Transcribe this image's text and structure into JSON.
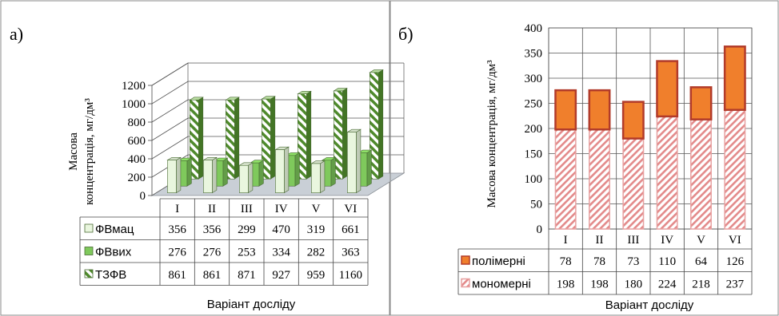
{
  "chart_data": [
    {
      "type": "bar",
      "panel_label": "а)",
      "ylabel": "Масова концентрація, мг/дм³",
      "ylabel_lines": [
        "Масова",
        "концентрація, мг/дм³"
      ],
      "xlabel": "Варіант досліду",
      "ylim": [
        0,
        1200
      ],
      "yticks": [
        "0",
        "200",
        "400",
        "600",
        "800",
        "1000",
        "1200"
      ],
      "categories": [
        "I",
        "II",
        "III",
        "IV",
        "V",
        "VI"
      ],
      "series": [
        {
          "name": "ФВмац",
          "values": [
            356,
            356,
            299,
            470,
            319,
            661
          ],
          "color": "#e9f6de"
        },
        {
          "name": "ФВвих",
          "values": [
            276,
            276,
            253,
            334,
            282,
            363
          ],
          "color": "#7fc95c"
        },
        {
          "name": "ТЗФВ",
          "values": [
            861,
            861,
            871,
            927,
            959,
            1160
          ],
          "color": "#4f8a2c"
        }
      ],
      "table": true,
      "grid": true
    },
    {
      "type": "bar",
      "stacked": true,
      "panel_label": "б)",
      "ylabel": "Масова концентрація, мг/дм³",
      "xlabel": "Варіант досліду",
      "ylim": [
        0,
        400
      ],
      "yticks": [
        "0",
        "50",
        "100",
        "150",
        "200",
        "250",
        "300",
        "350",
        "400"
      ],
      "categories": [
        "I",
        "II",
        "III",
        "IV",
        "V",
        "VI"
      ],
      "series": [
        {
          "name": "полімерні",
          "values": [
            78,
            78,
            73,
            110,
            64,
            126
          ],
          "color": "#f07f2c"
        },
        {
          "name": "мономерні",
          "values": [
            198,
            198,
            180,
            224,
            218,
            237
          ],
          "color": "#f4bcbc"
        }
      ],
      "table": true,
      "grid": true
    }
  ]
}
